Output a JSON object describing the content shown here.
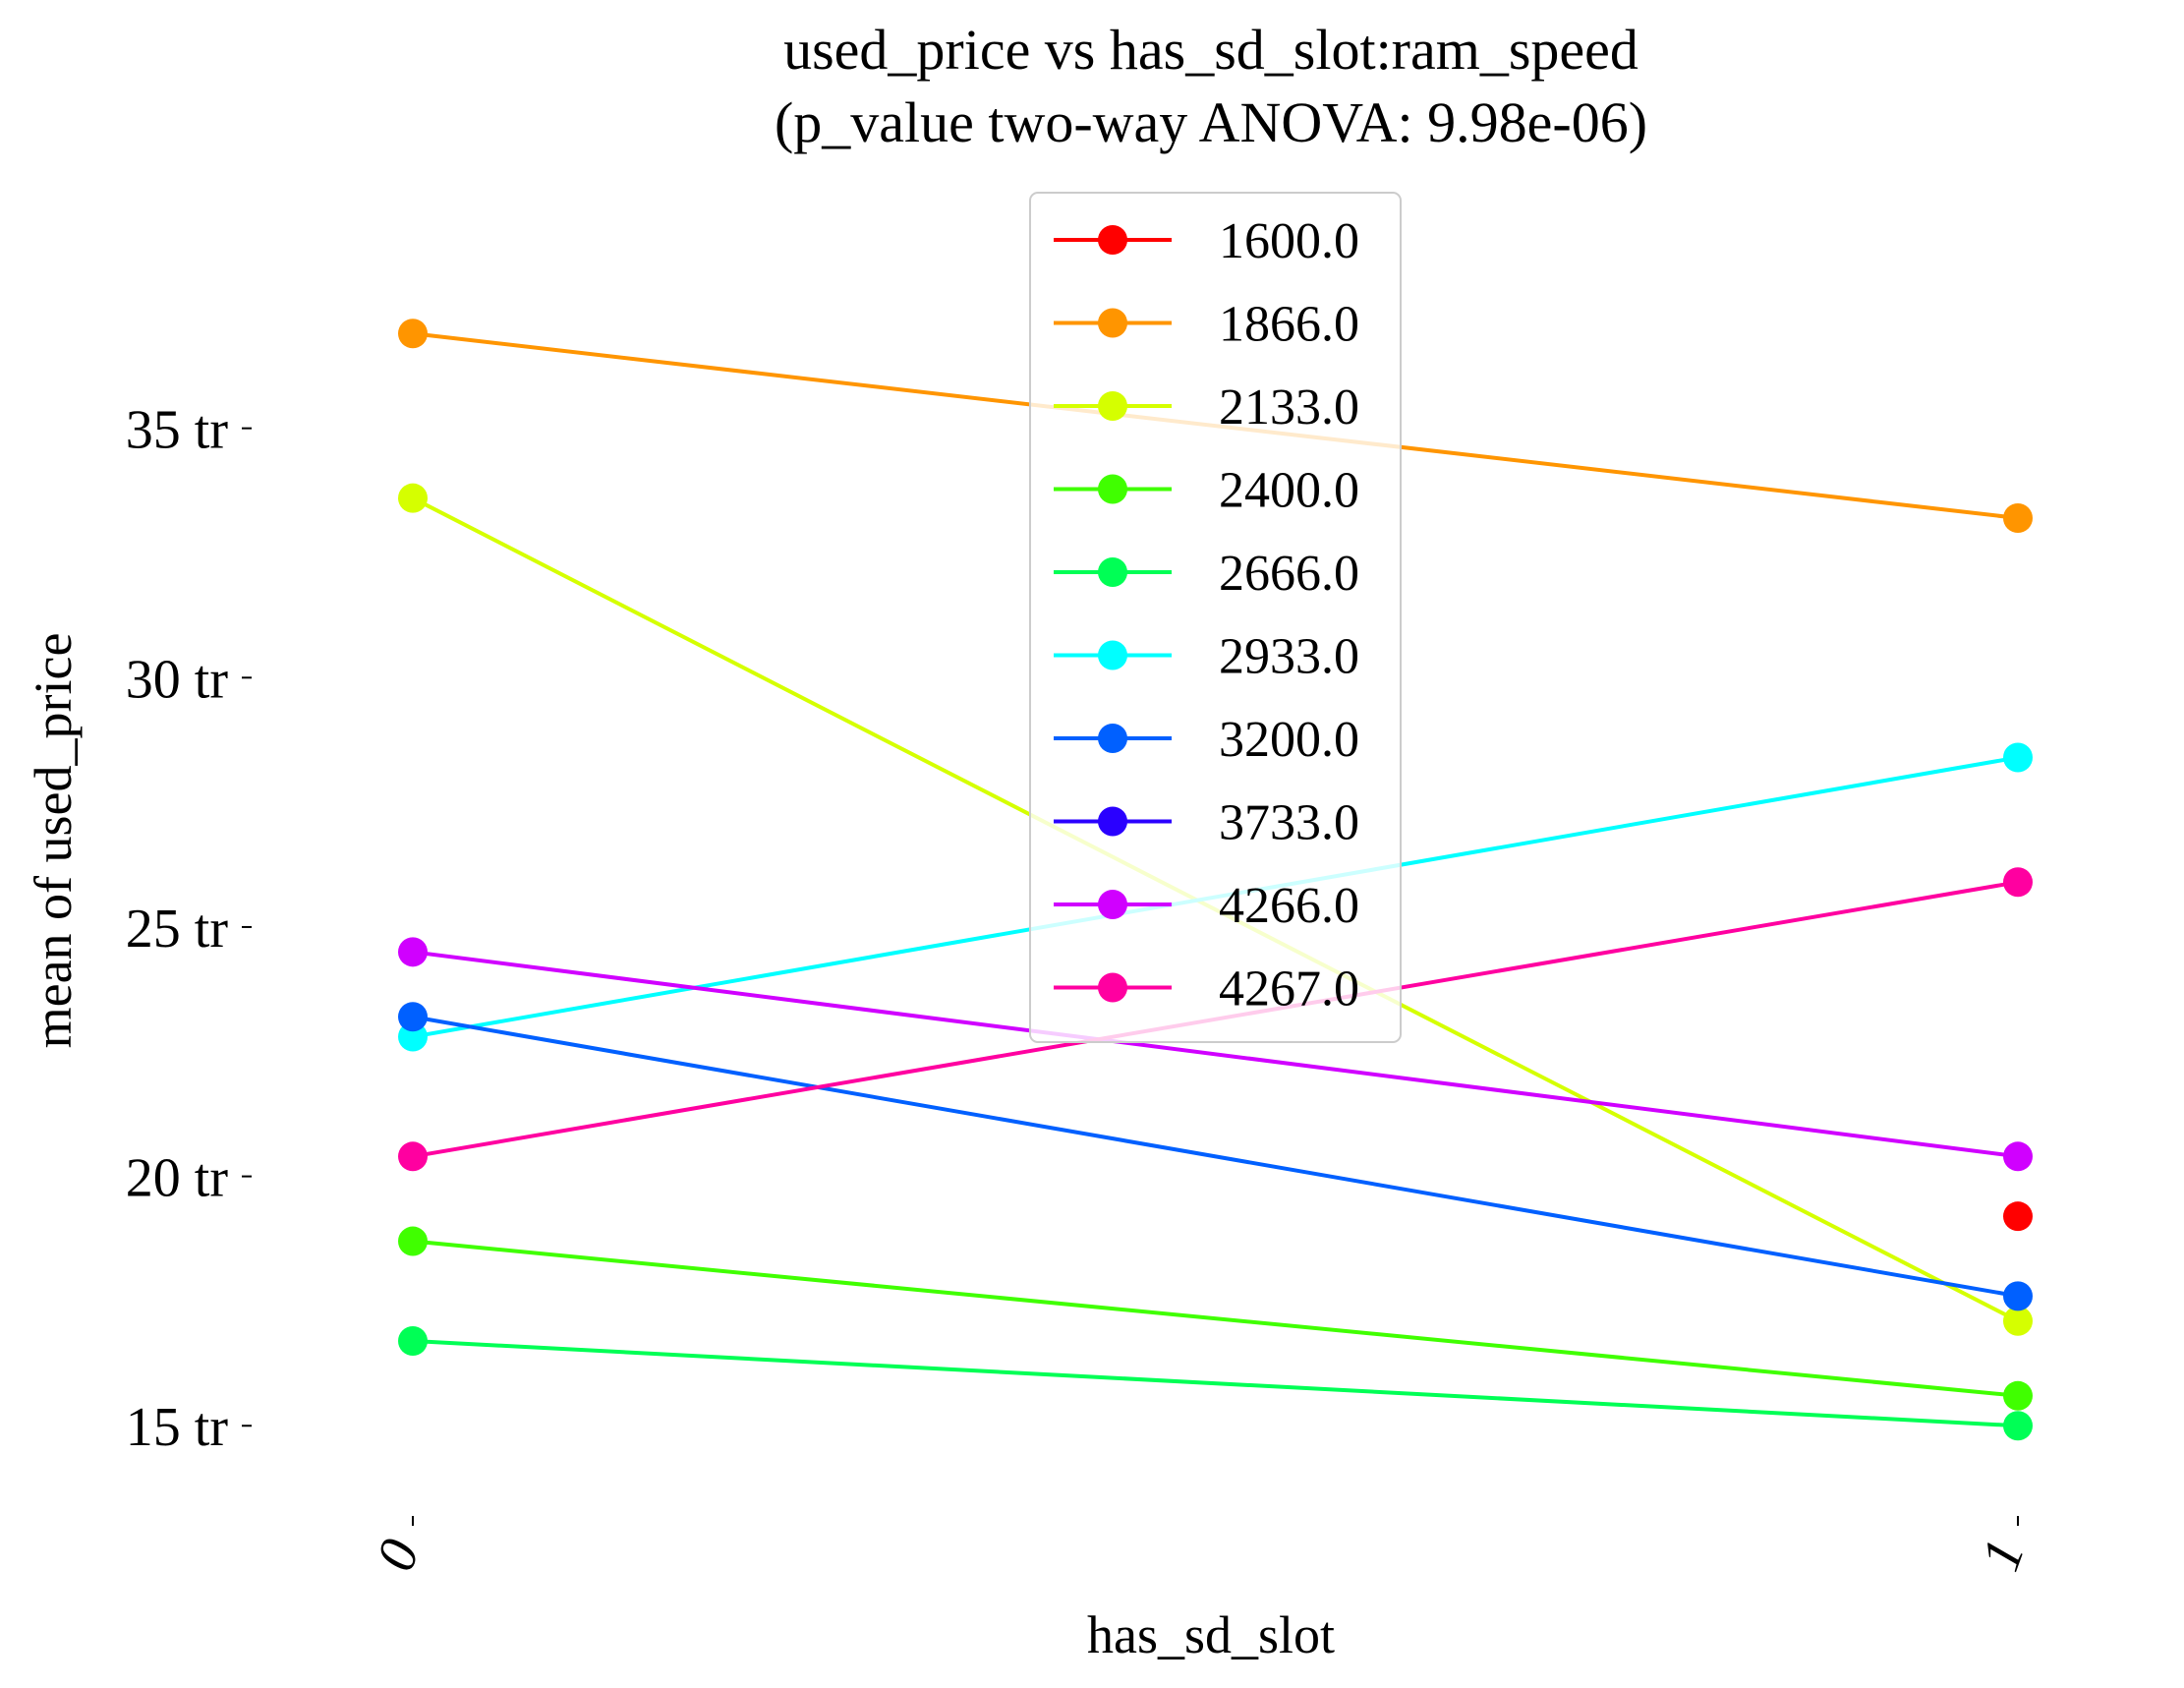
{
  "chart_data": {
    "type": "line",
    "title": "used_price vs has_sd_slot:ram_speed",
    "subtitle": "(p_value two-way ANOVA: 9.98e-06)",
    "xlabel": "has_sd_slot",
    "ylabel": "mean of used_price",
    "categories": [
      "0",
      "1"
    ],
    "ylim": [
      12.6,
      40.0
    ],
    "yticks": [
      {
        "value": 15,
        "label": "15 tr"
      },
      {
        "value": 20,
        "label": "20 tr"
      },
      {
        "value": 25,
        "label": "25 tr"
      },
      {
        "value": 30,
        "label": "30 tr"
      },
      {
        "value": 35,
        "label": "35 tr"
      }
    ],
    "grid": false,
    "legend_position": "top-center",
    "series": [
      {
        "name": "1600.0",
        "color": "#ff0000",
        "values": [
          null,
          19.2
        ]
      },
      {
        "name": "1866.0",
        "color": "#ff9500",
        "values": [
          36.9,
          33.2
        ]
      },
      {
        "name": "2133.0",
        "color": "#d5ff00",
        "values": [
          33.6,
          17.1
        ]
      },
      {
        "name": "2400.0",
        "color": "#40ff00",
        "values": [
          18.7,
          15.6
        ]
      },
      {
        "name": "2666.0",
        "color": "#00ff55",
        "values": [
          16.7,
          15.0
        ]
      },
      {
        "name": "2933.0",
        "color": "#00ffff",
        "values": [
          22.8,
          28.4
        ]
      },
      {
        "name": "3200.0",
        "color": "#0060ff",
        "values": [
          23.2,
          17.6
        ]
      },
      {
        "name": "3733.0",
        "color": "#2a00ff",
        "values": [
          null,
          null
        ]
      },
      {
        "name": "4266.0",
        "color": "#d000ff",
        "values": [
          24.5,
          20.4
        ]
      },
      {
        "name": "4267.0",
        "color": "#ff00a0",
        "values": [
          20.4,
          25.9
        ]
      }
    ]
  }
}
